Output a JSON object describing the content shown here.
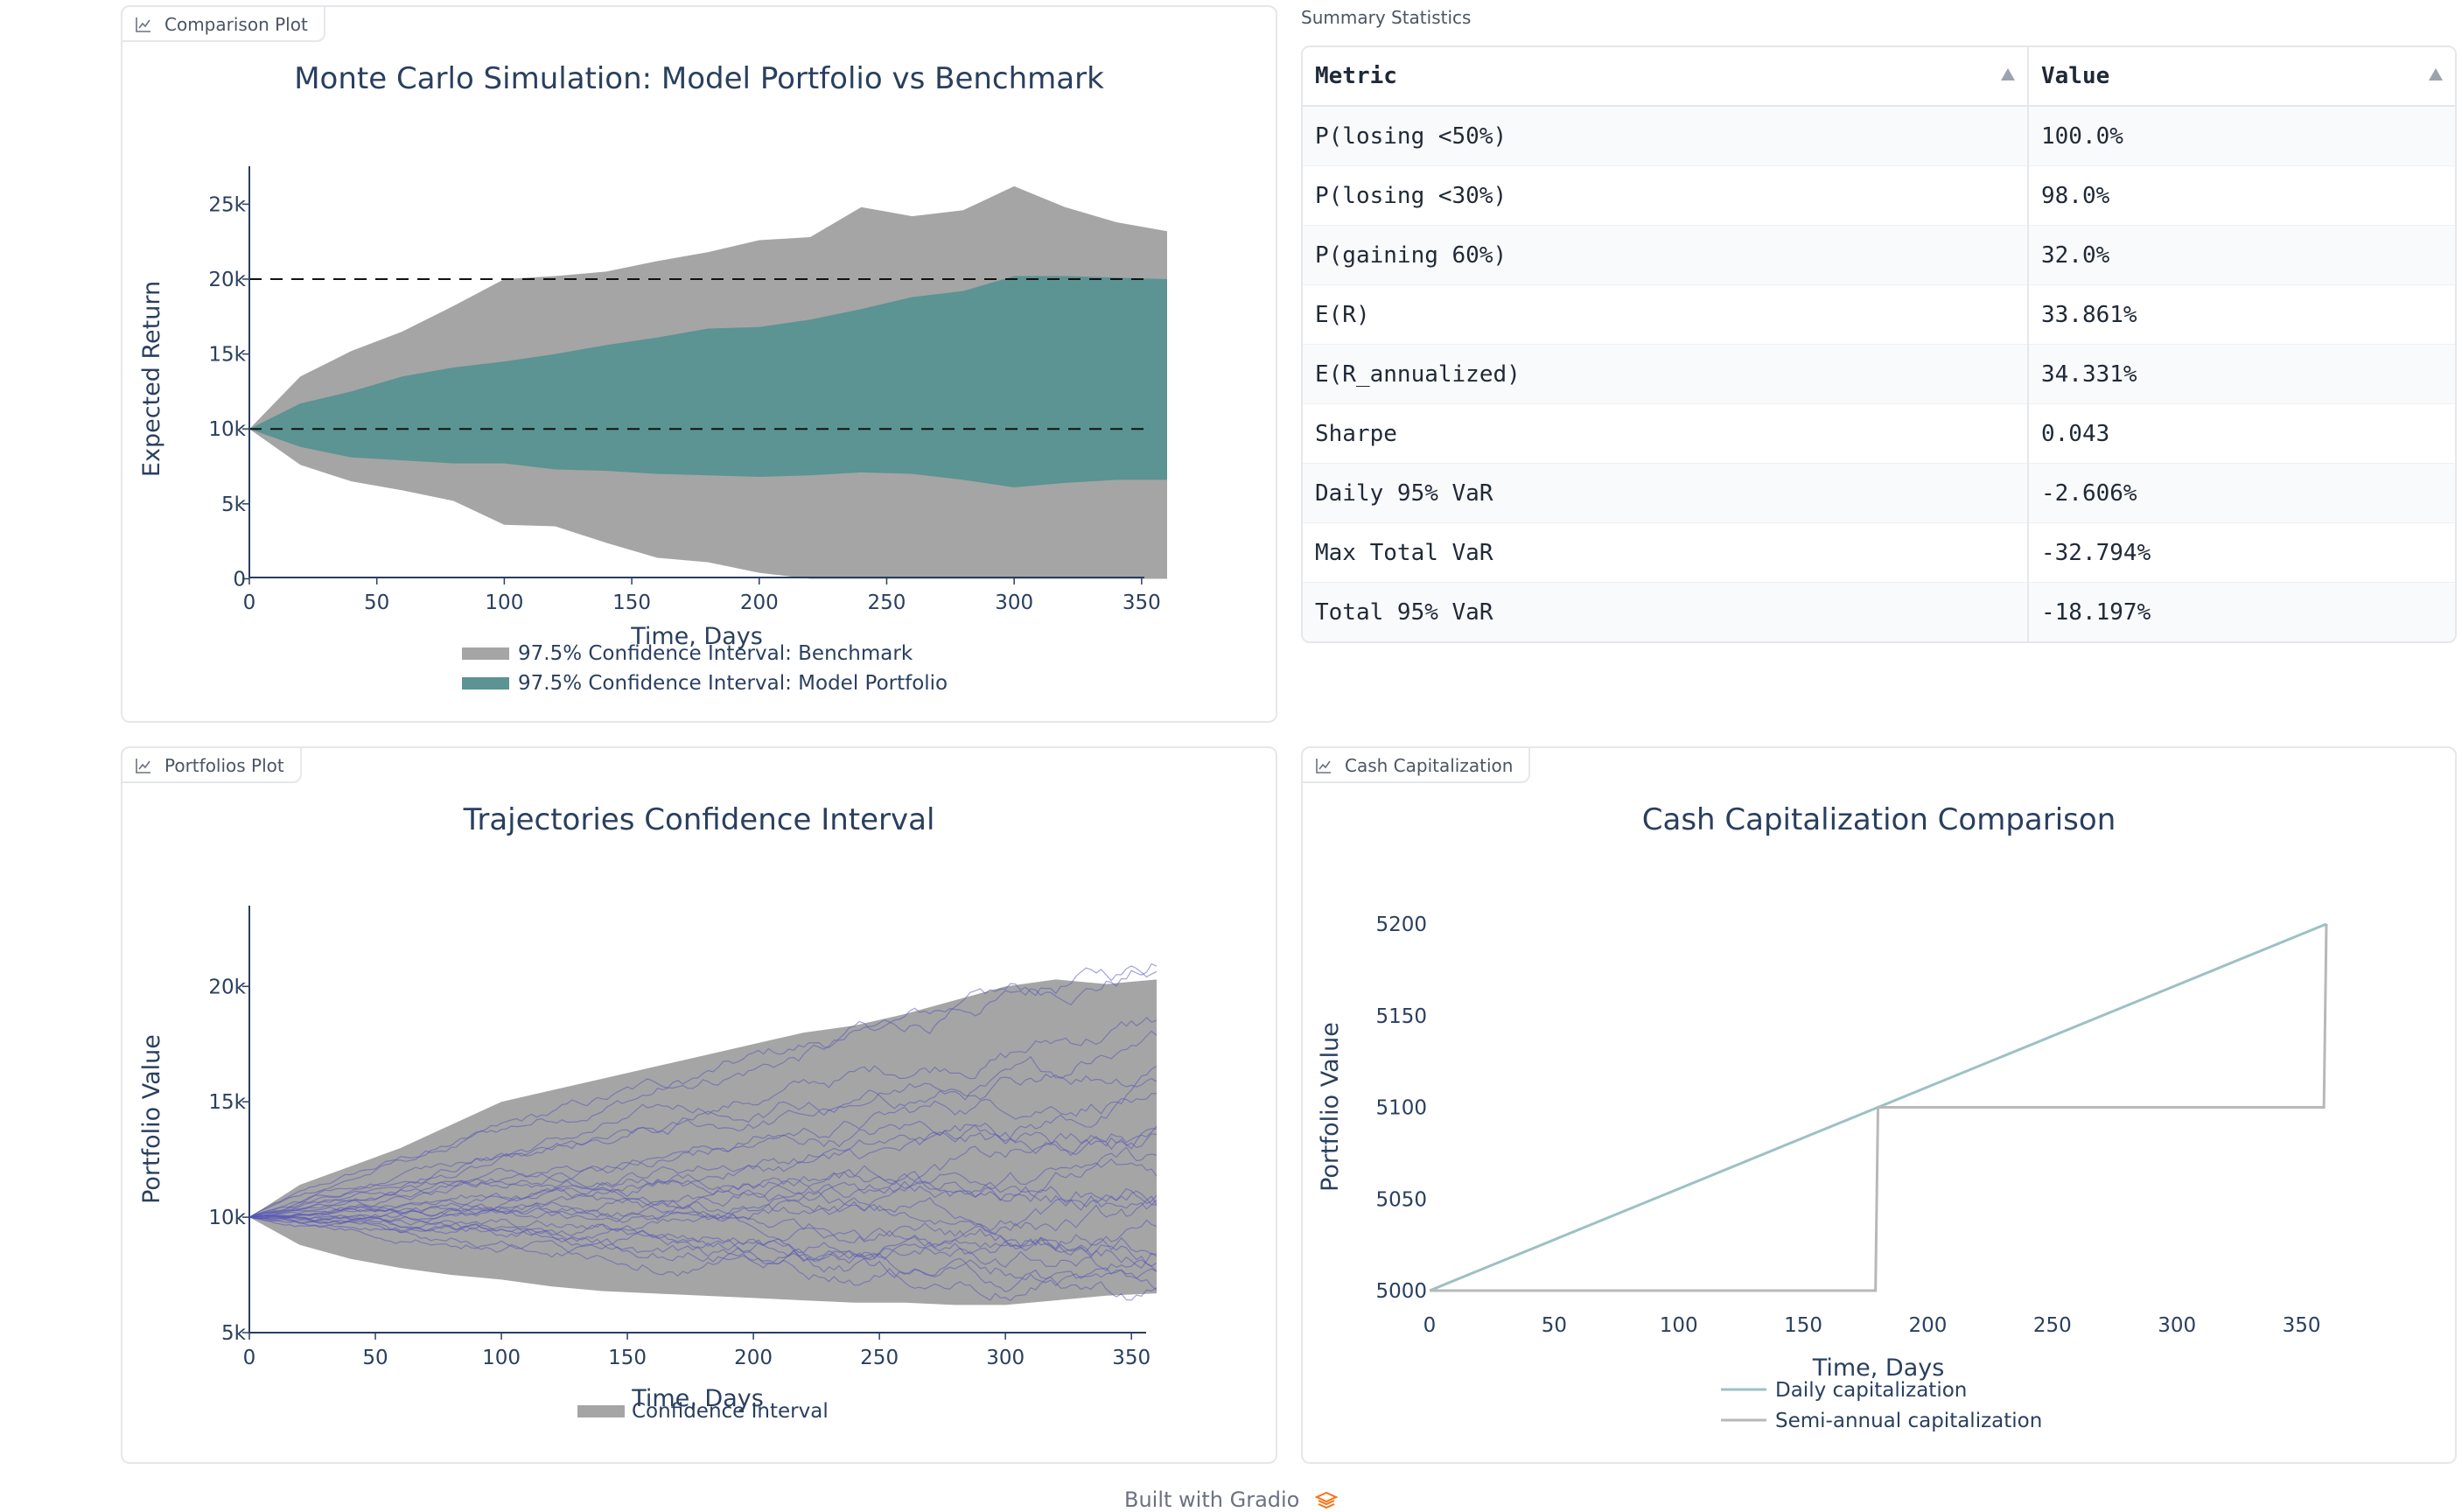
{
  "footer": {
    "text": "Built with Gradio"
  },
  "colors": {
    "benchmark": "#a5a5a5",
    "model": "#5b9492",
    "trajectory": "#5555b8",
    "daily": "#9cc1c3",
    "semiannual": "#b8b8b8"
  },
  "comparison_plot": {
    "label": "Comparison Plot",
    "icon": "chart-icon",
    "chart_data": {
      "type": "area",
      "title": "Monte Carlo Simulation: Model Portfolio vs Benchmark",
      "xlabel": "Time, Days",
      "ylabel": "Expected Return",
      "xlim": [
        0,
        360
      ],
      "ylim": [
        -500,
        28000
      ],
      "xticks": [
        0,
        50,
        100,
        150,
        200,
        250,
        300,
        350
      ],
      "yticks": [
        0,
        5000,
        10000,
        15000,
        20000,
        25000
      ],
      "yticklabels": [
        "0",
        "5k",
        "10k",
        "15k",
        "20k",
        "25k"
      ],
      "reference_lines": [
        10000,
        20000
      ],
      "legend_position": "bottom",
      "series": [
        {
          "name": "97.5% Confidence Interval: Benchmark",
          "x": [
            0,
            20,
            40,
            60,
            80,
            100,
            120,
            140,
            160,
            180,
            200,
            220,
            240,
            260,
            280,
            300,
            320,
            340,
            360
          ],
          "upper": [
            10000,
            13500,
            15200,
            16500,
            18200,
            20000,
            20200,
            20500,
            21200,
            21800,
            22600,
            22800,
            24800,
            24200,
            24600,
            26200,
            24800,
            23800,
            23200
          ],
          "lower": [
            10000,
            7600,
            6500,
            5900,
            5200,
            3600,
            3500,
            2400,
            1400,
            1100,
            400,
            0,
            0,
            0,
            0,
            0,
            0,
            0,
            0
          ]
        },
        {
          "name": "97.5% Confidence Interval: Model Portfolio",
          "x": [
            0,
            20,
            40,
            60,
            80,
            100,
            120,
            140,
            160,
            180,
            200,
            220,
            240,
            260,
            280,
            300,
            320,
            340,
            360
          ],
          "upper": [
            10000,
            11700,
            12500,
            13500,
            14100,
            14500,
            15000,
            15600,
            16100,
            16700,
            16800,
            17300,
            18000,
            18800,
            19200,
            20200,
            20200,
            20100,
            20000
          ],
          "lower": [
            10000,
            8800,
            8100,
            7900,
            7700,
            7700,
            7300,
            7200,
            7000,
            6900,
            6800,
            6900,
            7100,
            7000,
            6600,
            6100,
            6400,
            6600,
            6600
          ]
        }
      ]
    }
  },
  "stats": {
    "label": "Summary Statistics",
    "columns": [
      "Metric",
      "Value"
    ],
    "rows": [
      [
        "P(losing <50%)",
        "100.0%"
      ],
      [
        "P(losing <30%)",
        "98.0%"
      ],
      [
        "P(gaining 60%)",
        "32.0%"
      ],
      [
        "E(R)",
        "33.861%"
      ],
      [
        "E(R_annualized)",
        "34.331%"
      ],
      [
        "Sharpe",
        "0.043"
      ],
      [
        "Daily 95% VaR",
        "-2.606%"
      ],
      [
        "Max Total VaR",
        "-32.794%"
      ],
      [
        "Total 95% VaR",
        "-18.197%"
      ]
    ]
  },
  "portfolios_plot": {
    "label": "Portfolios Plot",
    "icon": "chart-icon",
    "chart_data": {
      "type": "line",
      "title": "Trajectories Confidence Interval",
      "xlabel": "Time, Days",
      "ylabel": "Portfolio Value",
      "xlim": [
        0,
        360
      ],
      "ylim": [
        5000,
        23500
      ],
      "xticks": [
        0,
        50,
        100,
        150,
        200,
        250,
        300,
        350
      ],
      "yticks": [
        5000,
        10000,
        15000,
        20000
      ],
      "yticklabels": [
        "5k",
        "10k",
        "15k",
        "20k"
      ],
      "legend_position": "bottom",
      "band": {
        "name": "Confidence Interval",
        "x": [
          0,
          20,
          40,
          60,
          80,
          100,
          120,
          140,
          160,
          180,
          200,
          220,
          240,
          260,
          280,
          300,
          320,
          340,
          360
        ],
        "upper": [
          10000,
          11400,
          12200,
          13000,
          14000,
          15000,
          15500,
          16000,
          16500,
          17000,
          17500,
          18000,
          18300,
          18800,
          19400,
          20000,
          20300,
          20100,
          20300
        ],
        "lower": [
          10000,
          8800,
          8200,
          7800,
          7500,
          7300,
          7000,
          6800,
          6700,
          6600,
          6500,
          6400,
          6300,
          6300,
          6200,
          6200,
          6400,
          6600,
          6700
        ]
      },
      "trajectories": {
        "count": 24,
        "x_end": 360,
        "end_values": [
          21000,
          20800,
          18500,
          16500,
          15800,
          14900,
          14200,
          13500,
          13000,
          12400,
          11800,
          11200,
          10800,
          10300,
          9900,
          9400,
          9000,
          8600,
          8200,
          7800,
          7400,
          7000,
          6800,
          17600
        ]
      }
    }
  },
  "cash_plot": {
    "label": "Cash Capitalization",
    "icon": "chart-icon",
    "chart_data": {
      "type": "line",
      "title": "Cash Capitalization Comparison",
      "xlabel": "Time, Days",
      "ylabel": "Portfolio Value",
      "xlim": [
        0,
        360
      ],
      "ylim": [
        4990,
        5210
      ],
      "xticks": [
        0,
        50,
        100,
        150,
        200,
        250,
        300,
        350
      ],
      "yticks": [
        5000,
        5050,
        5100,
        5150,
        5200
      ],
      "legend_position": "bottom",
      "series": [
        {
          "name": "Daily capitalization",
          "x": [
            0,
            180,
            360
          ],
          "y": [
            5000,
            5100,
            5200
          ]
        },
        {
          "name": "Semi-annual capitalization",
          "x": [
            0,
            179,
            180,
            359,
            360
          ],
          "y": [
            5000,
            5000,
            5100,
            5100,
            5200
          ]
        }
      ]
    }
  }
}
